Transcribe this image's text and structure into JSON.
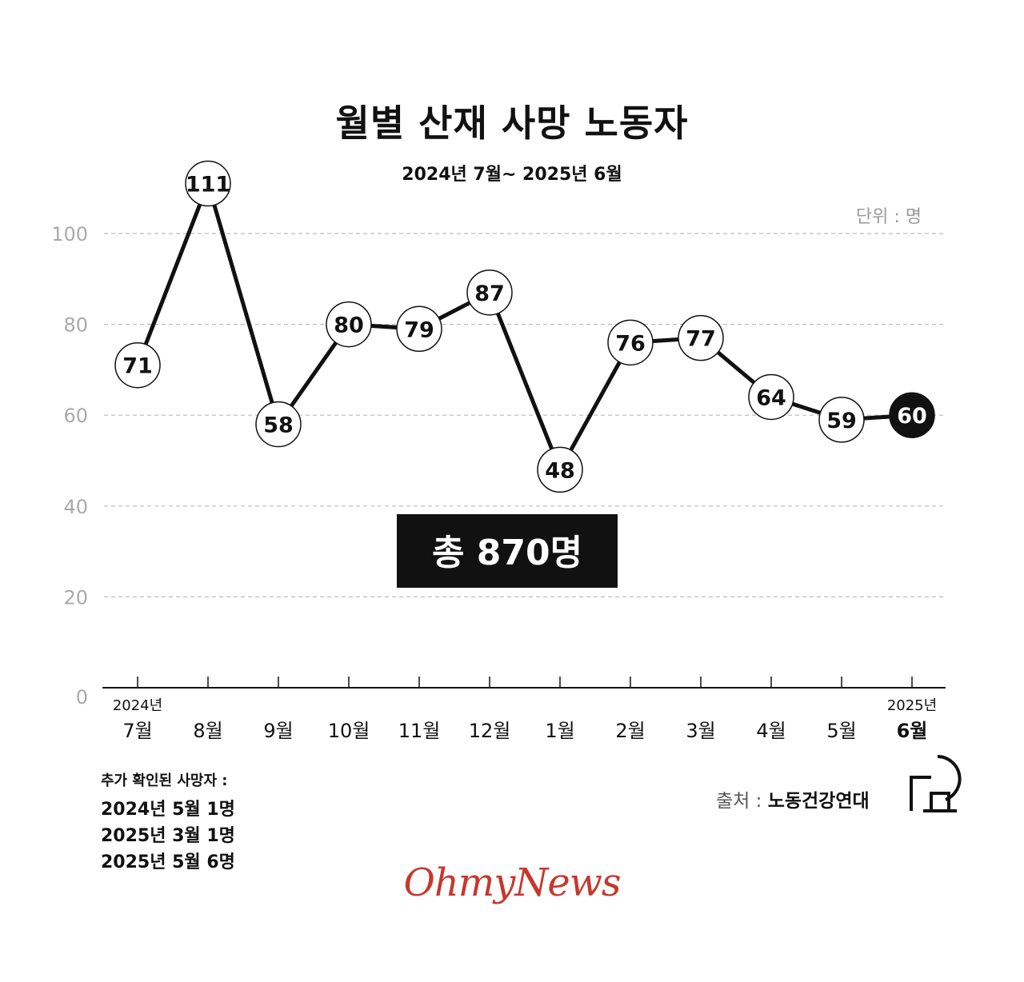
{
  "header": {
    "title": "월별 산재 사망 노동자",
    "subtitle": "2024년 7월~ 2025년 6월"
  },
  "chart_data": {
    "type": "line",
    "title": "월별 산재 사망 노동자",
    "subtitle": "2024년 7월~ 2025년 6월",
    "unit_label": "단위 : 명",
    "categories": [
      "7월",
      "8월",
      "9월",
      "10월",
      "11월",
      "12월",
      "1월",
      "2월",
      "3월",
      "4월",
      "5월",
      "6월"
    ],
    "year_labels": [
      {
        "index": 0,
        "label": "2024년"
      },
      {
        "index": 11,
        "label": "2025년"
      }
    ],
    "values": [
      71,
      111,
      58,
      80,
      79,
      87,
      48,
      76,
      77,
      64,
      59,
      60
    ],
    "highlight_index": 11,
    "y_ticks": [
      0,
      20,
      40,
      60,
      80,
      100
    ],
    "ylim": [
      0,
      111
    ],
    "grid": true,
    "total_label": "총 870명",
    "colors": {
      "line": "#111111",
      "marker_fill": "#ffffff",
      "highlight_fill": "#111111",
      "grid": "#bbbbbb",
      "axis_text": "#aaaaaa"
    }
  },
  "notes": {
    "heading": "추가 확인된 사망자 :",
    "lines": [
      "2024년 5월 1명",
      "2025년 3월 1명",
      "2025년 5월 6명"
    ]
  },
  "source": {
    "label": "출처 : ",
    "org": "노동건강연대"
  },
  "brand": {
    "name": "OhmyNews",
    "color": "#c8372d"
  }
}
